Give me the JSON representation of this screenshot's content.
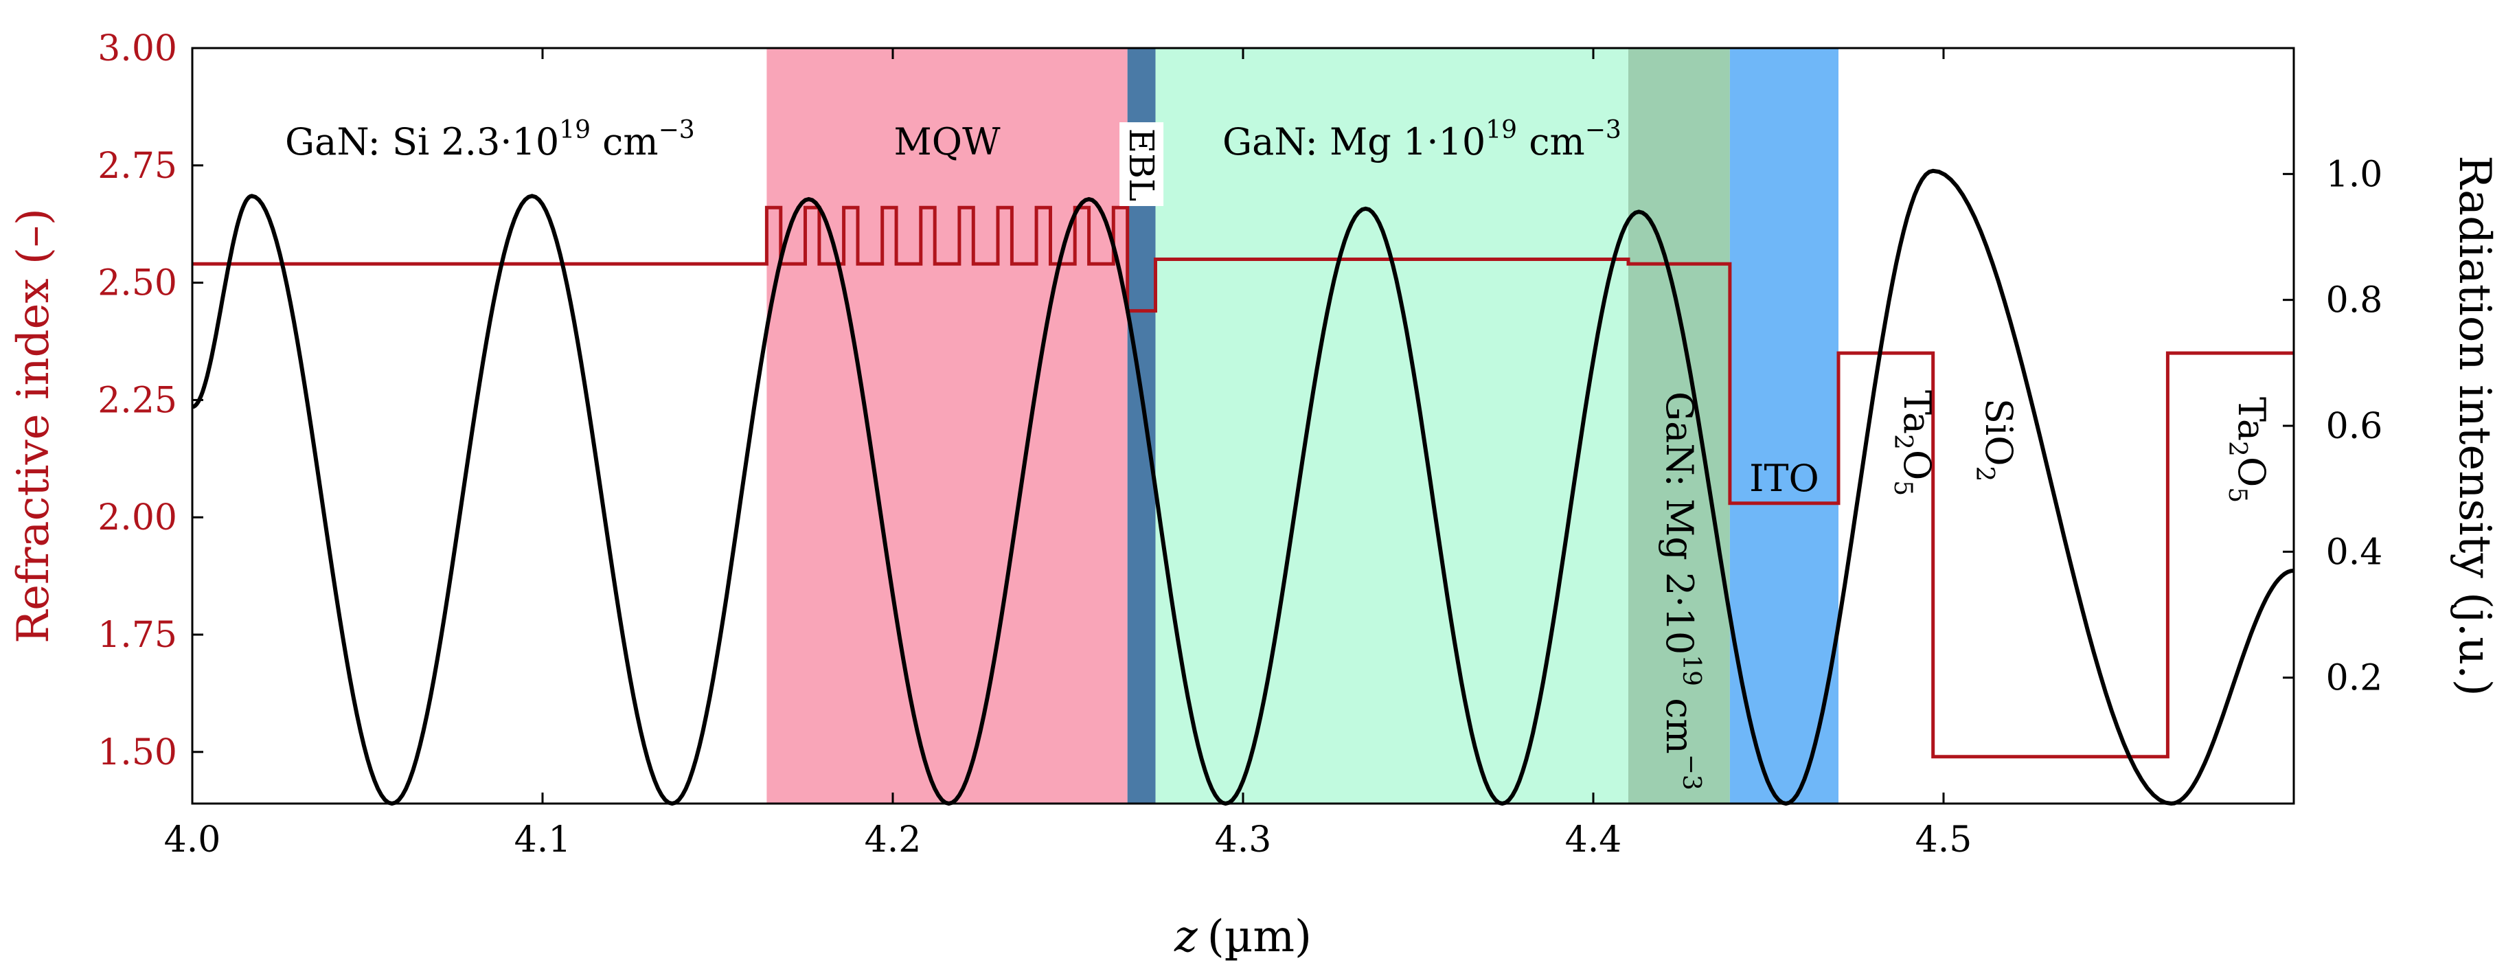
{
  "chart_data": {
    "type": "line",
    "xlabel": {
      "var": "z",
      "unit": "(µm)"
    },
    "ylabel_left": "Refractive index (–)",
    "ylabel_right": "Radiation intensity (j.u.)",
    "xlim": [
      4.0,
      4.6
    ],
    "ylim_left": [
      1.39,
      3.0
    ],
    "ylim_right": [
      0.0,
      1.2
    ],
    "x_ticks": [
      {
        "v": 4.0,
        "label": "4.0"
      },
      {
        "v": 4.1,
        "label": "4.1"
      },
      {
        "v": 4.2,
        "label": "4.2"
      },
      {
        "v": 4.3,
        "label": "4.3"
      },
      {
        "v": 4.4,
        "label": "4.4"
      },
      {
        "v": 4.5,
        "label": "4.5"
      }
    ],
    "y_ticks_left": [
      {
        "v": 1.5,
        "label": "1.50"
      },
      {
        "v": 1.75,
        "label": "1.75"
      },
      {
        "v": 2.0,
        "label": "2.00"
      },
      {
        "v": 2.25,
        "label": "2.25"
      },
      {
        "v": 2.5,
        "label": "2.50"
      },
      {
        "v": 2.75,
        "label": "2.75"
      },
      {
        "v": 3.0,
        "label": "3.00"
      }
    ],
    "y_ticks_right": [
      {
        "v": 0.2,
        "label": "0.2"
      },
      {
        "v": 0.4,
        "label": "0.4"
      },
      {
        "v": 0.6,
        "label": "0.6"
      },
      {
        "v": 0.8,
        "label": "0.8"
      },
      {
        "v": 1.0,
        "label": "1.0"
      }
    ],
    "regions": [
      {
        "name": "MQW",
        "x0": 4.164,
        "x1": 4.267,
        "color": "#f9a5b8"
      },
      {
        "name": "EBL",
        "x0": 4.267,
        "x1": 4.275,
        "color": "#4a7aa6"
      },
      {
        "name": "GaN-Mg-1e19",
        "x0": 4.275,
        "x1": 4.41,
        "color": "#c1fadf"
      },
      {
        "name": "GaN-Mg-2e19",
        "x0": 4.41,
        "x1": 4.439,
        "color": "#9dcfb0"
      },
      {
        "name": "ITO",
        "x0": 4.439,
        "x1": 4.47,
        "color": "#6fb7f8"
      }
    ],
    "labels": {
      "gan_si": {
        "main": "GaN: Si 2.3·10",
        "exp": "19",
        "unit": " cm",
        "unit_exp": "−3"
      },
      "mqw": "MQW",
      "ebl": "EBL",
      "gan_mg1": {
        "main": "GaN: Mg 1·10",
        "exp": "19",
        "unit": " cm",
        "unit_exp": "−3"
      },
      "gan_mg2": {
        "main": "GaN: Mg 2·10",
        "exp": "19",
        "unit": " cm",
        "unit_exp": "−3"
      },
      "ito": "ITO",
      "ta2o5_a": {
        "a": "Ta",
        "sub1": "2",
        "b": "O",
        "sub2": "5"
      },
      "sio2": {
        "a": "SiO",
        "sub1": "2"
      },
      "ta2o5_b": {
        "a": "Ta",
        "sub1": "2",
        "b": "O",
        "sub2": "5"
      }
    },
    "series": [
      {
        "name": "Refractive index",
        "axis": "left",
        "color": "#b0141c",
        "step": [
          [
            4.0,
            2.54
          ],
          [
            4.164,
            2.54
          ],
          [
            4.164,
            2.66
          ],
          [
            4.168,
            2.66
          ],
          [
            4.168,
            2.54
          ],
          [
            4.175,
            2.54
          ],
          [
            4.175,
            2.66
          ],
          [
            4.179,
            2.66
          ],
          [
            4.179,
            2.54
          ],
          [
            4.186,
            2.54
          ],
          [
            4.186,
            2.66
          ],
          [
            4.19,
            2.66
          ],
          [
            4.19,
            2.54
          ],
          [
            4.197,
            2.54
          ],
          [
            4.197,
            2.66
          ],
          [
            4.201,
            2.66
          ],
          [
            4.201,
            2.54
          ],
          [
            4.208,
            2.54
          ],
          [
            4.208,
            2.66
          ],
          [
            4.212,
            2.66
          ],
          [
            4.212,
            2.54
          ],
          [
            4.219,
            2.54
          ],
          [
            4.219,
            2.66
          ],
          [
            4.223,
            2.66
          ],
          [
            4.223,
            2.54
          ],
          [
            4.23,
            2.54
          ],
          [
            4.23,
            2.66
          ],
          [
            4.234,
            2.66
          ],
          [
            4.234,
            2.54
          ],
          [
            4.241,
            2.54
          ],
          [
            4.241,
            2.66
          ],
          [
            4.245,
            2.66
          ],
          [
            4.245,
            2.54
          ],
          [
            4.252,
            2.54
          ],
          [
            4.252,
            2.66
          ],
          [
            4.256,
            2.66
          ],
          [
            4.256,
            2.54
          ],
          [
            4.263,
            2.54
          ],
          [
            4.263,
            2.66
          ],
          [
            4.267,
            2.66
          ],
          [
            4.267,
            2.44
          ],
          [
            4.275,
            2.44
          ],
          [
            4.275,
            2.55
          ],
          [
            4.41,
            2.55
          ],
          [
            4.41,
            2.54
          ],
          [
            4.439,
            2.54
          ],
          [
            4.439,
            2.03
          ],
          [
            4.47,
            2.03
          ],
          [
            4.47,
            2.35
          ],
          [
            4.497,
            2.35
          ],
          [
            4.497,
            1.49
          ],
          [
            4.564,
            1.49
          ],
          [
            4.564,
            2.35
          ],
          [
            4.6,
            2.35
          ]
        ]
      },
      {
        "name": "Radiation intensity",
        "axis": "right",
        "color": "#000000",
        "extrema": [
          [
            4.0,
            0.63
          ],
          [
            4.017,
            0.965
          ],
          [
            4.057,
            0.0
          ],
          [
            4.097,
            0.965
          ],
          [
            4.137,
            0.0
          ],
          [
            4.176,
            0.96
          ],
          [
            4.216,
            0.0
          ],
          [
            4.256,
            0.96
          ],
          [
            4.295,
            0.0
          ],
          [
            4.335,
            0.945
          ],
          [
            4.374,
            0.0
          ],
          [
            4.413,
            0.94
          ],
          [
            4.455,
            0.0
          ],
          [
            4.497,
            1.005
          ],
          [
            4.565,
            0.0
          ],
          [
            4.6,
            0.37
          ]
        ]
      }
    ]
  }
}
